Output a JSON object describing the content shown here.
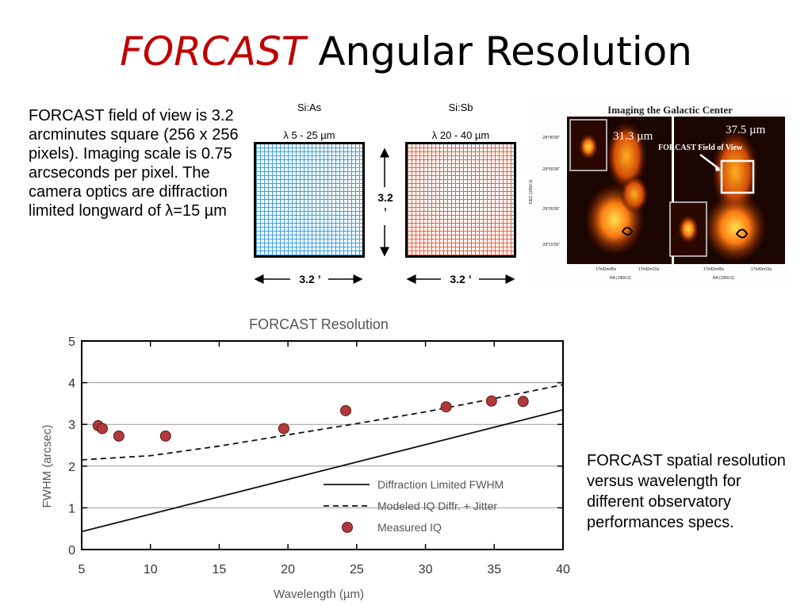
{
  "slide": {
    "title_highlight": "FORCAST",
    "title_rest": "Angular Resolution",
    "description": "FORCAST field of view is 3.2 arcminutes square (256 x 256 pixels). Imaging scale is 0.75 arcseconds per pixel. The camera optics are diffraction limited longward of λ=15 µm",
    "caption": "FORCAST spatial resolution versus wavelength for different observatory performances specs."
  },
  "detectors": [
    {
      "material": "Si:As",
      "range": "λ 5 - 25 µm",
      "color": "#3b9fe0"
    },
    {
      "material": "Si:Sb",
      "range": "λ 20 - 40 µm",
      "color": "#e8603c"
    }
  ],
  "dimensions": {
    "width": "3.2 ’",
    "height_value": "3.2",
    "height_unit": "’"
  },
  "galactic_image": {
    "title": "Imaging the Galactic Center",
    "label_left": "31.3 µm",
    "label_right": "37.5 µm",
    "fov_label": "FORCAST Field of View",
    "dec_label": "DEC (1950.0)",
    "ra_label_left": "RA (1950.0)",
    "ra_label_right": "RA (1950.0)",
    "dec_ticks": [
      "-28°45'00\"",
      "-28°55'00\"",
      "-29°05'00\"",
      "-29°15'00\""
    ],
    "ra_ticks_left": [
      "17h42m45s",
      "17h42m15s"
    ],
    "ra_ticks_right": [
      "17h42m45s",
      "17h42m15s"
    ]
  },
  "chart_data": {
    "type": "line",
    "title": "FORCAST Resolution",
    "xlabel": "Wavelength (µm)",
    "ylabel": "FWHM (arcsec)",
    "xlim": [
      5,
      40
    ],
    "ylim": [
      0,
      5
    ],
    "xticks": [
      5,
      10,
      15,
      20,
      25,
      30,
      35,
      40
    ],
    "yticks": [
      0,
      1,
      2,
      3,
      4,
      5
    ],
    "grid": "horizontal",
    "legend_position": "bottom-right",
    "series": [
      {
        "name": "Diffraction Limited FWHM",
        "style": "solid",
        "x": [
          5,
          40
        ],
        "y": [
          0.43,
          3.35
        ]
      },
      {
        "name": "Modeled IQ Diffr. + Jitter",
        "style": "dashed",
        "x": [
          5,
          10,
          15,
          20,
          25,
          30,
          35,
          40
        ],
        "y": [
          2.15,
          2.25,
          2.48,
          2.75,
          3.02,
          3.3,
          3.62,
          3.95
        ]
      },
      {
        "name": "Measured IQ",
        "style": "marker",
        "color": "#b03a3a",
        "x": [
          6.2,
          6.5,
          7.7,
          11.1,
          19.7,
          24.2,
          31.5,
          34.8,
          37.1
        ],
        "y": [
          2.97,
          2.9,
          2.72,
          2.72,
          2.9,
          3.33,
          3.42,
          3.56,
          3.55
        ]
      }
    ]
  }
}
